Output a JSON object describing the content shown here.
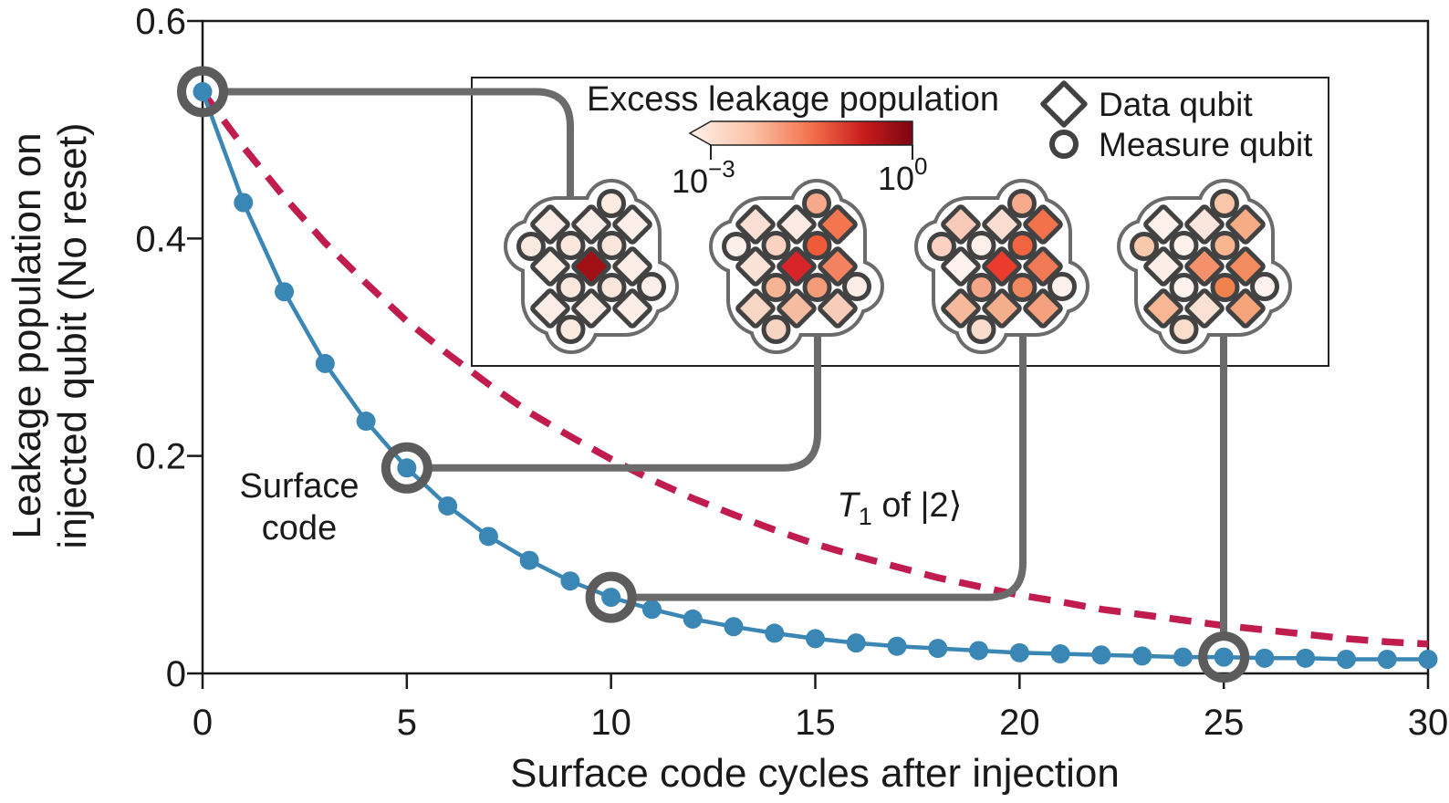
{
  "colors": {
    "blue": "#3A86B4",
    "blue_text": "#4897C2",
    "crimson": "#C01C4E",
    "gray": "#6B6B6B",
    "ring_gray": "#5C5C5C",
    "qubit_stroke": "#424242",
    "axis": "#1A1A1A",
    "colorbar_stops": [
      "#FEF1EA",
      "#FBC2A7",
      "#F3704B",
      "#C91C1D",
      "#7B0511"
    ],
    "colorbar_offsets": [
      "0%",
      "28%",
      "55%",
      "78%",
      "100%"
    ]
  },
  "chart_data": {
    "type": "line",
    "xlabel": "Surface code cycles after injection",
    "ylabel_line1": "Leakage population on",
    "ylabel_line2": "injected qubit (No reset)",
    "xlim": [
      0,
      30
    ],
    "ylim": [
      0,
      0.6
    ],
    "xticks": [
      0,
      5,
      10,
      15,
      20,
      25,
      30
    ],
    "xtick_labels": [
      "0",
      "5",
      "10",
      "15",
      "20",
      "25",
      "30"
    ],
    "yticks": [
      0,
      0.2,
      0.4,
      0.6
    ],
    "ytick_labels": [
      "0",
      "0.2",
      "0.4",
      "0.6"
    ],
    "grid": false,
    "series": [
      {
        "name": "Surface code",
        "style": "solid_with_markers",
        "color": "#3A86B4",
        "x": [
          0,
          1,
          2,
          3,
          4,
          5,
          6,
          7,
          8,
          9,
          10,
          11,
          12,
          13,
          14,
          15,
          16,
          17,
          18,
          19,
          20,
          21,
          22,
          23,
          24,
          25,
          26,
          27,
          28,
          29,
          30
        ],
        "values": [
          0.535,
          0.433,
          0.351,
          0.285,
          0.232,
          0.189,
          0.154,
          0.126,
          0.104,
          0.085,
          0.07,
          0.059,
          0.05,
          0.043,
          0.037,
          0.032,
          0.028,
          0.025,
          0.023,
          0.021,
          0.019,
          0.018,
          0.017,
          0.016,
          0.015,
          0.015,
          0.014,
          0.014,
          0.013,
          0.013,
          0.013
        ]
      },
      {
        "name": "T₁ of |2⟩",
        "style": "dashed",
        "color": "#C01C4E",
        "x": [
          0,
          1,
          2,
          3,
          4,
          5,
          6,
          7,
          8,
          9,
          10,
          11,
          12,
          13,
          14,
          15,
          16,
          17,
          18,
          19,
          20,
          21,
          22,
          23,
          24,
          25,
          26,
          27,
          28,
          29,
          30
        ],
        "values": [
          0.535,
          0.484,
          0.438,
          0.396,
          0.359,
          0.324,
          0.294,
          0.266,
          0.24,
          0.218,
          0.197,
          0.178,
          0.161,
          0.146,
          0.132,
          0.119,
          0.108,
          0.098,
          0.088,
          0.08,
          0.072,
          0.066,
          0.059,
          0.054,
          0.049,
          0.044,
          0.04,
          0.036,
          0.032,
          0.029,
          0.027
        ]
      }
    ],
    "highlighted_cycles": [
      0,
      5,
      10,
      25
    ]
  },
  "annotations": {
    "surface_code_line1": "Surface",
    "surface_code_line2": "code",
    "t1_prefix": "T",
    "t1_sub": "1",
    "t1_suffix": " of |2⟩"
  },
  "inset": {
    "title": "Excess leakage population",
    "colorbar": {
      "min_base": "10",
      "min_exp": "−3",
      "max_base": "10",
      "max_exp": "0"
    },
    "legend": [
      {
        "icon": "diamond-icon",
        "label": "Data qubit"
      },
      {
        "icon": "circle-icon",
        "label": "Measure qubit"
      }
    ],
    "clusters": [
      {
        "connects_to_cycle": 0,
        "data_qubits": [
          "#FBEDE5",
          "#FBEDE7",
          "#FCEEE8",
          "#FBECE4",
          "#A01014",
          "#FBEDE6",
          "#FBEDE6",
          "#FBEDE5",
          "#FCEEE7"
        ],
        "measure_qubits": [
          "#FBEBE1",
          "#FBEAE0",
          "#FAE8DE",
          "#FAE7DC",
          "#FAE8DD",
          "#F9E6DA",
          "#FCEFE9",
          "#FAEAE0"
        ]
      },
      {
        "connects_to_cycle": 5,
        "data_qubits": [
          "#FADFD4",
          "#FCEBE3",
          "#F4764E",
          "#FAE2D6",
          "#D72429",
          "#F28260",
          "#F8D6C6",
          "#F5BCA1",
          "#F7CDBA"
        ],
        "measure_qubits": [
          "#F6A98A",
          "#FCEFE9",
          "#F9D2C0",
          "#EF5A38",
          "#F6B495",
          "#F49B77",
          "#FCEEE6",
          "#F8D5C3"
        ]
      },
      {
        "connects_to_cycle": 10,
        "data_qubits": [
          "#F7C9B6",
          "#FADCD0",
          "#F2724C",
          "#FDF2EE",
          "#EA3C2E",
          "#F17A56",
          "#F6B99C",
          "#F4AE8C",
          "#F5A17D"
        ],
        "measure_qubits": [
          "#F6AC8C",
          "#F9D0C1",
          "#FDEFE9",
          "#F06540",
          "#F4A587",
          "#F1875F",
          "#FDF0EA",
          "#FADCCC"
        ]
      },
      {
        "connects_to_cycle": 25,
        "data_qubits": [
          "#FDEFE9",
          "#FBE5DC",
          "#F6AD86",
          "#FCEDE6",
          "#F4916C",
          "#F28B60",
          "#F7B795",
          "#FBE0D4",
          "#F5A37B"
        ],
        "measure_qubits": [
          "#F9C6AA",
          "#F9C9AE",
          "#FDF1EB",
          "#F8B690",
          "#FDF2ED",
          "#F0824E",
          "#FDF2EE",
          "#FADDCB"
        ]
      }
    ]
  }
}
